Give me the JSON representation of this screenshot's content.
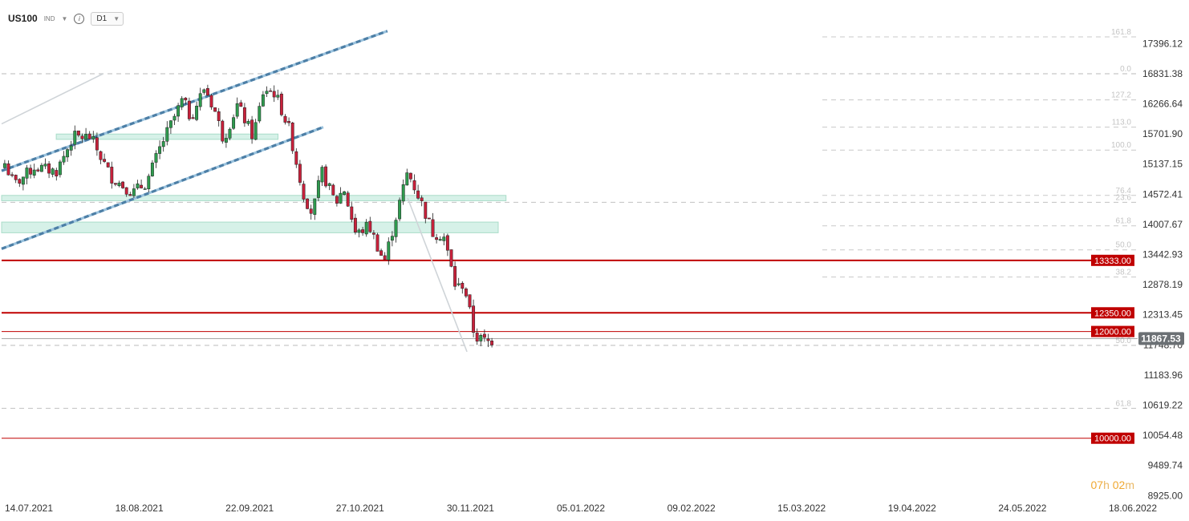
{
  "header": {
    "symbol": "US100",
    "market": "IND",
    "timeframe": "D1"
  },
  "countdown": {
    "hours": "07",
    "h": "h",
    "minutes": "02",
    "m": "m"
  },
  "colors": {
    "up": "#2e9b4e",
    "down": "#c8213b",
    "level_line": "#c00000",
    "channel": "#5b8fb8",
    "zone": "#d2f0e6",
    "fib": "#c8c8c8"
  },
  "chart_data": {
    "type": "candlestick",
    "symbol": "US100",
    "timeframe": "D1",
    "ylim": [
      8925,
      17700
    ],
    "y_ticks": [
      "17396.12",
      "16831.38",
      "16266.64",
      "15701.90",
      "15137.15",
      "14572.41",
      "14007.67",
      "13442.93",
      "12878.19",
      "12313.45",
      "11748.70",
      "11183.96",
      "10619.22",
      "10054.48",
      "9489.74",
      "8925.00"
    ],
    "x_labels": [
      "14.07.2021",
      "18.08.2021",
      "22.09.2021",
      "27.10.2021",
      "30.11.2021",
      "05.01.2022",
      "09.02.2022",
      "15.03.2022",
      "19.04.2022",
      "24.05.2022",
      "18.06.2022"
    ],
    "last_price": "11867.53",
    "levels": [
      {
        "label": "13333.00",
        "price": 13333,
        "style": "thick"
      },
      {
        "label": "12350.00",
        "price": 12350,
        "style": "thick"
      },
      {
        "label": "12000.00",
        "price": 12000,
        "style": "thin"
      },
      {
        "label": "10000.00",
        "price": 10000,
        "style": "thin"
      }
    ],
    "fib_levels": [
      {
        "label": "161.8",
        "price": 17520
      },
      {
        "label": "0.0",
        "price": 16830
      },
      {
        "label": "127.2",
        "price": 16340
      },
      {
        "label": "113.0",
        "price": 15830
      },
      {
        "label": "100.0",
        "price": 15400
      },
      {
        "label": "76.4",
        "price": 14550
      },
      {
        "label": "23.6",
        "price": 14420
      },
      {
        "label": "61.8",
        "price": 13980
      },
      {
        "label": "50.0",
        "price": 13530
      },
      {
        "label": "38.2",
        "price": 13020
      },
      {
        "label": "50.0",
        "price": 11740
      },
      {
        "label": "61.8",
        "price": 10560
      }
    ],
    "zones": [
      {
        "from_date": "2021-08-16",
        "to_date": "2022-01-05",
        "low": 15600,
        "high": 15700
      },
      {
        "from_date": "2021-07-12",
        "to_date": "2022-05-31",
        "low": 14450,
        "high": 14550
      },
      {
        "from_date": "2021-07-12",
        "to_date": "2022-05-26",
        "low": 13850,
        "high": 14050
      }
    ],
    "channel_lines": [
      {
        "from": [
          "2021-07-12",
          15010
        ],
        "to": [
          "2022-03-16",
          17630
        ]
      },
      {
        "from": [
          "2021-07-12",
          13550
        ],
        "to": [
          "2022-02-03",
          15830
        ]
      }
    ],
    "trend_lines": [
      {
        "from": [
          "2021-07-12",
          15890
        ],
        "to": [
          "2021-09-15",
          16830
        ]
      },
      {
        "from": [
          "2022-03-29",
          14500
        ],
        "to": [
          "2022-05-06",
          11620
        ]
      }
    ],
    "anchors": [
      [
        "2021-07-14",
        15150
      ],
      [
        "2021-07-20",
        14750
      ],
      [
        "2021-08-02",
        15080
      ],
      [
        "2021-08-16",
        15000
      ],
      [
        "2021-08-27",
        15650
      ],
      [
        "2021-09-07",
        15640
      ],
      [
        "2021-09-20",
        14900
      ],
      [
        "2021-10-04",
        14600
      ],
      [
        "2021-10-13",
        14800
      ],
      [
        "2021-10-22",
        15480
      ],
      [
        "2021-11-05",
        16350
      ],
      [
        "2021-11-10",
        16000
      ],
      [
        "2021-11-19",
        16580
      ],
      [
        "2021-11-26",
        16100
      ],
      [
        "2021-12-01",
        15600
      ],
      [
        "2021-12-10",
        16250
      ],
      [
        "2021-12-20",
        15650
      ],
      [
        "2021-12-27",
        16550
      ],
      [
        "2022-01-03",
        16470
      ],
      [
        "2022-01-12",
        15800
      ],
      [
        "2022-01-21",
        14600
      ],
      [
        "2022-01-27",
        14200
      ],
      [
        "2022-02-02",
        15000
      ],
      [
        "2022-02-11",
        14400
      ],
      [
        "2022-02-16",
        14700
      ],
      [
        "2022-02-24",
        13800
      ],
      [
        "2022-03-04",
        14000
      ],
      [
        "2022-03-14",
        13300
      ],
      [
        "2022-03-29",
        15000
      ],
      [
        "2022-04-07",
        14400
      ],
      [
        "2022-04-14",
        13850
      ],
      [
        "2022-04-21",
        13800
      ],
      [
        "2022-04-29",
        12800
      ],
      [
        "2022-05-04",
        12900
      ],
      [
        "2022-05-11",
        11900
      ],
      [
        "2022-05-20",
        11800
      ],
      [
        "2022-05-24",
        11870
      ]
    ]
  }
}
